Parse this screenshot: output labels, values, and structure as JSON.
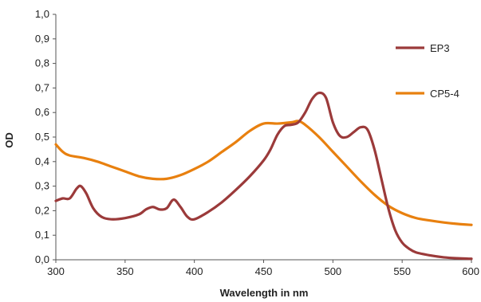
{
  "chart_data": {
    "type": "line",
    "title": "",
    "xlabel": "Wavelength in nm",
    "ylabel": "OD",
    "xlim": [
      300,
      600
    ],
    "ylim": [
      0,
      1.0
    ],
    "x_ticks": [
      300,
      350,
      400,
      450,
      500,
      550,
      600
    ],
    "x_tick_labels": [
      "300",
      "350",
      "400",
      "450",
      "500",
      "550",
      "600"
    ],
    "y_ticks": [
      0,
      0.1,
      0.2,
      0.3,
      0.4,
      0.5,
      0.6,
      0.7,
      0.8,
      0.9,
      1.0
    ],
    "y_tick_labels": [
      "0,0",
      "0,1",
      "0,2",
      "0,3",
      "0,4",
      "0,5",
      "0,6",
      "0,7",
      "0,8",
      "0,9",
      "1,0"
    ],
    "grid": false,
    "legend_position": "top-right",
    "series": [
      {
        "name": "EP3",
        "color": "#9B3A3A",
        "points": [
          [
            300,
            0.24
          ],
          [
            305,
            0.25
          ],
          [
            310,
            0.25
          ],
          [
            315,
            0.29
          ],
          [
            318,
            0.3
          ],
          [
            322,
            0.27
          ],
          [
            327,
            0.21
          ],
          [
            333,
            0.175
          ],
          [
            340,
            0.165
          ],
          [
            350,
            0.17
          ],
          [
            360,
            0.185
          ],
          [
            365,
            0.205
          ],
          [
            370,
            0.215
          ],
          [
            375,
            0.205
          ],
          [
            380,
            0.21
          ],
          [
            385,
            0.245
          ],
          [
            390,
            0.215
          ],
          [
            395,
            0.175
          ],
          [
            400,
            0.165
          ],
          [
            410,
            0.195
          ],
          [
            420,
            0.235
          ],
          [
            430,
            0.285
          ],
          [
            440,
            0.34
          ],
          [
            450,
            0.405
          ],
          [
            455,
            0.45
          ],
          [
            460,
            0.51
          ],
          [
            465,
            0.545
          ],
          [
            470,
            0.55
          ],
          [
            475,
            0.56
          ],
          [
            480,
            0.6
          ],
          [
            485,
            0.655
          ],
          [
            490,
            0.68
          ],
          [
            495,
            0.66
          ],
          [
            500,
            0.56
          ],
          [
            505,
            0.505
          ],
          [
            510,
            0.5
          ],
          [
            515,
            0.52
          ],
          [
            520,
            0.54
          ],
          [
            525,
            0.53
          ],
          [
            530,
            0.45
          ],
          [
            535,
            0.33
          ],
          [
            540,
            0.21
          ],
          [
            545,
            0.12
          ],
          [
            550,
            0.07
          ],
          [
            555,
            0.045
          ],
          [
            560,
            0.03
          ],
          [
            570,
            0.018
          ],
          [
            580,
            0.01
          ],
          [
            590,
            0.006
          ],
          [
            600,
            0.004
          ]
        ]
      },
      {
        "name": "CP5-4",
        "color": "#E8800F",
        "points": [
          [
            300,
            0.47
          ],
          [
            305,
            0.44
          ],
          [
            310,
            0.425
          ],
          [
            320,
            0.415
          ],
          [
            330,
            0.4
          ],
          [
            340,
            0.38
          ],
          [
            350,
            0.36
          ],
          [
            360,
            0.34
          ],
          [
            370,
            0.33
          ],
          [
            380,
            0.33
          ],
          [
            390,
            0.345
          ],
          [
            400,
            0.37
          ],
          [
            410,
            0.4
          ],
          [
            420,
            0.44
          ],
          [
            430,
            0.48
          ],
          [
            440,
            0.525
          ],
          [
            450,
            0.555
          ],
          [
            460,
            0.555
          ],
          [
            470,
            0.56
          ],
          [
            475,
            0.565
          ],
          [
            480,
            0.55
          ],
          [
            490,
            0.5
          ],
          [
            500,
            0.44
          ],
          [
            510,
            0.38
          ],
          [
            520,
            0.32
          ],
          [
            530,
            0.265
          ],
          [
            540,
            0.22
          ],
          [
            550,
            0.19
          ],
          [
            560,
            0.17
          ],
          [
            570,
            0.16
          ],
          [
            580,
            0.152
          ],
          [
            590,
            0.146
          ],
          [
            600,
            0.142
          ]
        ]
      }
    ]
  }
}
